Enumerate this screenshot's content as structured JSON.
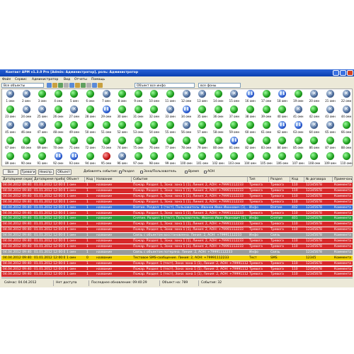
{
  "window": {
    "title": "Контакт АРМ v1.3.0 Pro [Admin: Администратор], роль: Администратор",
    "menu": [
      "Файл",
      "Сервис",
      "Администратор",
      "Вид",
      "Отчеты",
      "Помощь"
    ],
    "toolbar": {
      "group": "Все объекты",
      "filter": "Объект все инфо",
      "mode": "все фоны"
    }
  },
  "objects": {
    "labels": [
      "1 омн",
      "2 омн",
      "3 омн",
      "4 омн",
      "5 омн",
      "6 омн",
      "7 омн",
      "8 омн",
      "9 омн",
      "10 омн",
      "11 омн",
      "12 омн",
      "13 омн",
      "14 омн",
      "15 омн",
      "16 омн",
      "17 омн",
      "18 омн",
      "19 омн",
      "20 омн",
      "21 омн",
      "22 омн",
      "23 омн",
      "24 омн",
      "25 омн",
      "26 омн",
      "27 омн",
      "28 омн",
      "29 омн",
      "30 омн",
      "31 омн",
      "32 омн",
      "33 омн",
      "34 омн",
      "35 омн",
      "36 омн",
      "37 омн",
      "38 омн",
      "39 омн",
      "40 омн",
      "41 омн",
      "42 омн",
      "43 омн",
      "44 омн",
      "45 омн",
      "46 омн",
      "47 омн",
      "48 омн",
      "49 омн",
      "50 омн",
      "51 омн",
      "52 омн",
      "53 омн",
      "54 омн",
      "55 омн",
      "56 омн",
      "57 омн",
      "58 омн",
      "59 омн",
      "60 омн",
      "61 омн",
      "62 омн",
      "63 омн",
      "64 омн",
      "65 омн",
      "66 омн",
      "67 омн",
      "68 омн",
      "69 омн",
      "70 омн",
      "71 омн",
      "72 омн",
      "73 омн",
      "74 омн",
      "75 омн",
      "76 омн",
      "77 омн",
      "78 омн",
      "79 омн",
      "80 омн",
      "81 омн",
      "82 омн",
      "83 омн",
      "84 омн",
      "85 омн",
      "86 омн",
      "87 омн",
      "88 омн",
      "89 омн",
      "90 омн",
      "91 омн",
      "92 омн",
      "93 омн",
      "94 омн",
      "95 омн",
      "96 омн",
      "97 омн",
      "98 омн",
      "99 омн",
      "100 омн",
      "101 омн",
      "102 омн",
      "103 омн",
      "104 омн",
      "105 омн",
      "106 омн",
      "107 омн",
      "108 омн",
      "109 омн",
      "110 омн"
    ],
    "states": [
      "x",
      "x",
      "g",
      "g",
      "g",
      "g",
      "x",
      "g",
      "g",
      "g",
      "g",
      "x",
      "x",
      "g",
      "x",
      "b",
      "g",
      "b",
      "g",
      "x",
      "x",
      "x",
      "g",
      "x",
      "x",
      "g",
      "x",
      "g",
      "b",
      "g",
      "g",
      "g",
      "x",
      "b",
      "g",
      "g",
      "g",
      "g",
      "g",
      "g",
      "x",
      "g",
      "x",
      "x",
      "x",
      "x",
      "x",
      "g",
      "g",
      "g",
      "g",
      "g",
      "g",
      "g",
      "g",
      "x",
      "g",
      "g",
      "g",
      "g",
      "g",
      "b",
      "b",
      "x",
      "x",
      "g",
      "g",
      "g",
      "g",
      "g",
      "g",
      "g",
      "g",
      "g",
      "g",
      "g",
      "g",
      "g",
      "g",
      "g",
      "b",
      "g",
      "g",
      "g",
      "g",
      "g",
      "g",
      "g",
      "g",
      "g",
      "g",
      "b",
      "b",
      "g",
      "r",
      "x",
      "g",
      "g",
      "g",
      "g",
      "g",
      "g",
      "g",
      "g",
      "g",
      "g",
      "g",
      "g",
      "g",
      "g"
    ]
  },
  "filters": {
    "buttons": [
      "Все",
      "Тревоги",
      "Неиспр.",
      "Объект"
    ],
    "add_label": "Добавлять события:",
    "checks": [
      "Раздел",
      "Зона/Пользователь",
      "Время",
      "АОН"
    ]
  },
  "table": {
    "headers": [
      "Дата/время сервера",
      "Дата/время прибора",
      "Объект",
      "Код",
      "Название",
      "Событие",
      "Тип",
      "Раздел",
      "Код",
      "№ договора",
      "Примечание"
    ],
    "rows": [
      {
        "color": "red",
        "cells": [
          "04.04.2012 09:40:21",
          "01.01.2012 12:00:00",
          "1 омн",
          "1",
          "название",
          "Пожар. Раздел: 1, Зона: зона 1 (1), Линия: 2, АОН: +79991112233",
          "Тревога",
          "Тревога",
          "110",
          "12345678",
          "Коммента"
        ]
      },
      {
        "color": "red",
        "cells": [
          "04.04.2012 09:40:21",
          "01.01.2012 12:00:00",
          "1 омн",
          "1",
          "название",
          "Пожар. Раздел: 1, Зона: зона 1 (1), Линия: 2, АОН: +79991112233",
          "Тревога",
          "Тревога",
          "110",
          "12345678",
          "Коммента"
        ]
      },
      {
        "color": "red",
        "cells": [
          "04.04.2012 09:40:21",
          "01.01.2012 12:00:00",
          "1 омн",
          "1",
          "название",
          "Пожар. Раздел: 1, Зона: зона 1 (1), Линия: 2, АОН: +79991112233",
          "Тревога",
          "Тревога",
          "110",
          "12345678",
          "Коммента"
        ]
      },
      {
        "color": "red",
        "cells": [
          "04.04.2012 09:40:20",
          "01.01.2012 12:00:00",
          "1 омн",
          "1",
          "название",
          "Пожар. Раздел: 1, Зона: зона 1 (1), Линия: 2, АОН: +79991112233",
          "Тревога",
          "Тревога",
          "110",
          "12345678",
          "Коммента"
        ]
      },
      {
        "color": "blue",
        "cells": [
          "04.04.2012 09:40:20",
          "01.01.2012 12:00:00",
          "1 омн",
          "1",
          "название",
          "Взятие. Раздел: 1 (тест), Пользователь: Иванов Иван Иванович (1), Лини",
          "Инфо",
          "Взятие",
          "402",
          "12345678",
          "Коммента"
        ]
      },
      {
        "color": "red",
        "cells": [
          "04.04.2012 09:40:20",
          "01.01.2012 12:00:00",
          "1 омн",
          "1",
          "название",
          "Пожар. Раздел: 1, Зона: зона 1 (1), Линия: 2, АОН: +79991112233",
          "Тревога",
          "Тревога",
          "110",
          "12345678",
          "Коммента"
        ]
      },
      {
        "color": "green",
        "cells": [
          "04.04.2012 09:40:19",
          "01.01.2012 12:00:00",
          "1 омн",
          "1",
          "название",
          "Снятие. Раздел: 1 (тест), Пользователь: Иванов Иван Иванович (1), Лини",
          "Инфо",
          "Снятие",
          "401",
          "12345678",
          "Коммента"
        ]
      },
      {
        "color": "red",
        "cells": [
          "04.04.2012 09:40:19",
          "01.01.2012 12:00:00",
          "1 омн",
          "1",
          "название",
          "Пожар. Раздел: 1, Зона: зона 1 (1), Линия: 2, АОН: +79991112233",
          "Тревога",
          "Тревога",
          "110",
          "12345678",
          "Коммента"
        ]
      },
      {
        "color": "red",
        "cells": [
          "04.04.2012 09:40:19",
          "01.01.2012 12:00:00",
          "1 омн",
          "1",
          "название",
          "Пожар. Раздел: 1, Зона: зона 1 (1), Линия: 2, АОН: +79991112233",
          "Тревога",
          "Тревога",
          "110",
          "12345678",
          "Коммента"
        ]
      },
      {
        "color": "gray",
        "cells": [
          "04.04.2012 09:40:18",
          "01.01.2012 12:00:00",
          "1 омн",
          "1",
          "название",
          "Связь с объектом восстановлена. Линия: 2, АОН: +79991112233",
          "Инфо",
          "Связь",
          "",
          "12345678",
          "Коммента"
        ]
      },
      {
        "color": "red",
        "cells": [
          "04.04.2012 09:40:18",
          "01.01.2012 12:00:00",
          "1 омн",
          "1",
          "название",
          "Пожар. Раздел: 1, Зона: зона 1 (1), Линия: 2, АОН: +79991112233",
          "Тревога",
          "Тревога",
          "110",
          "12345678",
          "Коммента"
        ]
      },
      {
        "color": "red",
        "cells": [
          "04.04.2012 09:40:18",
          "01.01.2012 12:00:00",
          "1 омн",
          "1",
          "название",
          "Пожар. Раздел: 1, Зона: зона 1 (1), Линия: 2, АОН: +79991112233",
          "Тревога",
          "Тревога",
          "110",
          "12345678",
          "Коммента"
        ]
      },
      {
        "color": "gray",
        "cells": [
          "04.04.2012 09:40:17",
          "01.01.2012 12:00:00",
          "1 омн",
          "1",
          "название",
          "Связь с объектом потеряна. Линия: 2, АОН: +79991112233",
          "Инфо",
          "Связь",
          "",
          "12345678",
          "Коммента"
        ]
      },
      {
        "color": "yellow",
        "cells": [
          "04.04.2012 09:40:17",
          "01.01.2012 12:00:00",
          "1 омн",
          "0",
          "название",
          "Тестовое SMS-сообщение. Линия: 2, АОН: +79991112233",
          "Тест",
          "SMS",
          "",
          "12345",
          "Коммента"
        ]
      },
      {
        "color": "red",
        "cells": [
          "04.04.2012 09:40:16",
          "01.01.2012 12:00:00",
          "1 омн",
          "1",
          "название",
          "Пожар. Раздел: 1 (тест), Зона: зона 1 (1), Линия: 2, АОН: +79991112233",
          "Тревога",
          "Тревога",
          "110",
          "12345678",
          "Коммента"
        ]
      },
      {
        "color": "red",
        "cells": [
          "04.04.2012 09:40:16",
          "01.01.2012 12:00:00",
          "1 омн",
          "1",
          "название",
          "Пожар. Раздел: 1 (тест), Зона: зона 1 (1), Линия: 2, АОН: +79991112233",
          "Тревога",
          "Тревога",
          "110",
          "12345678",
          "Коммента"
        ]
      },
      {
        "color": "red",
        "cells": [
          "04.04.2012 09:40:15",
          "01.01.2012 12:00:00",
          "1 омн",
          "1",
          "название",
          "Пожар. Раздел: 1 (тест), Зона: зона 1 (1), Линия: 2, АОН: +79991112233",
          "Тревога",
          "Тревога",
          "110",
          "12345678",
          "Коммента"
        ]
      }
    ]
  },
  "status": [
    "Сейчас: 04.04.2012",
    "Нет доступа",
    "Последнее обновление: 09:40:29",
    "Объект на: 789",
    "События: 32"
  ]
}
